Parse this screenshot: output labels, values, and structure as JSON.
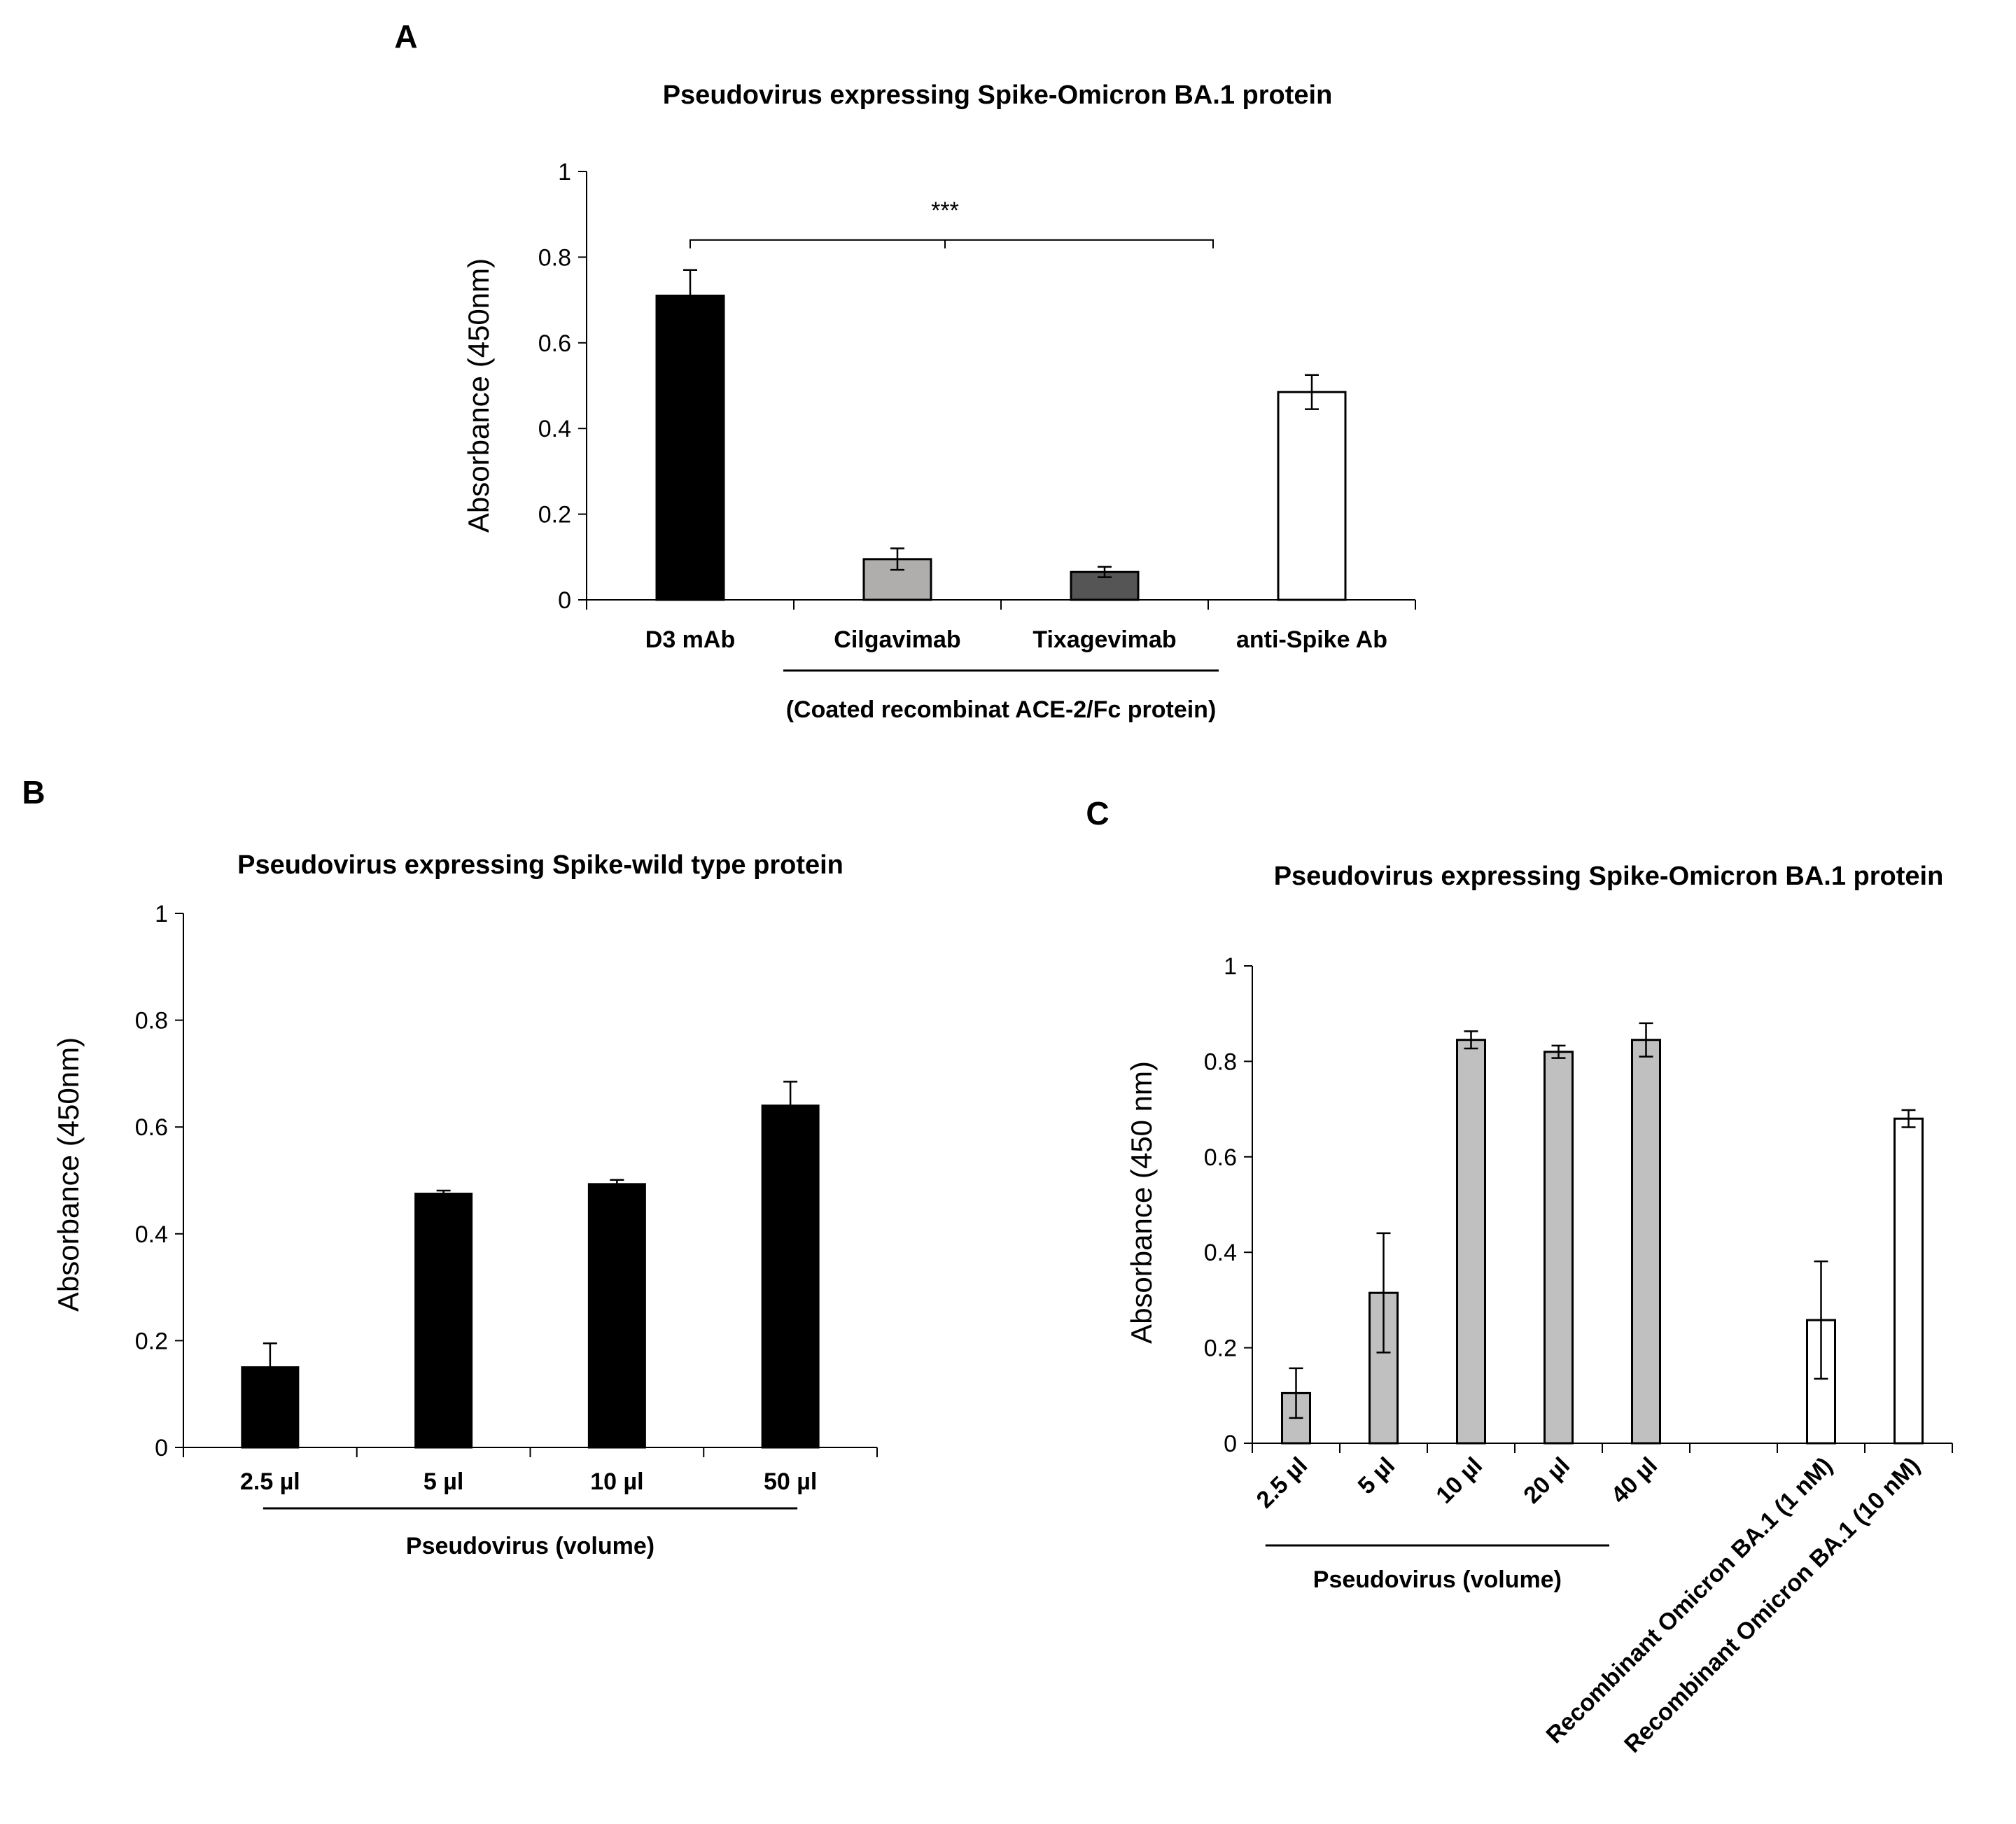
{
  "chart_data": [
    {
      "panel": "A",
      "type": "bar",
      "title": "Pseudovirus expressing Spike-Omicron BA.1 protein",
      "xlabel": "",
      "ylabel": "Absorbance (450nm)",
      "ylim": [
        0,
        1
      ],
      "yticks": [
        "0",
        "0.2",
        "0.4",
        "0.6",
        "0.8",
        "1"
      ],
      "categories": [
        "D3 mAb",
        "Cilgavimab",
        "Tixagevimab",
        "anti-Spike Ab"
      ],
      "values": [
        0.71,
        0.095,
        0.065,
        0.485
      ],
      "errors": [
        0.06,
        0.025,
        0.012,
        0.04
      ],
      "colors": [
        "#000000",
        "#b0adad",
        "#555555",
        "#ffffff"
      ],
      "group_label": "(Coated recombinat ACE-2/Fc protein)",
      "group_span": [
        1,
        2
      ],
      "significance": {
        "label": "***",
        "from": 0,
        "to": 2,
        "y": 0.84
      }
    },
    {
      "panel": "B",
      "type": "bar",
      "title": "Pseudovirus expressing Spike-wild type protein",
      "xlabel": "",
      "ylabel": "Absorbance (450nm)",
      "ylim": [
        0,
        1
      ],
      "yticks": [
        "0",
        "0.2",
        "0.4",
        "0.6",
        "0.8",
        "1"
      ],
      "categories": [
        "2.5 µl",
        "5 µl",
        "10 µl",
        "50 µl"
      ],
      "values": [
        0.15,
        0.475,
        0.493,
        0.64
      ],
      "errors": [
        0.045,
        0.006,
        0.008,
        0.045
      ],
      "colors": [
        "#000000",
        "#000000",
        "#000000",
        "#000000"
      ],
      "group_label": "Pseudovirus (volume)",
      "group_span": [
        0,
        3
      ]
    },
    {
      "panel": "C",
      "type": "bar",
      "title": "Pseudovirus expressing Spike-Omicron BA.1 protein",
      "xlabel": "",
      "ylabel": "Absorbance (450 nm)",
      "ylim": [
        0,
        1
      ],
      "yticks": [
        "0",
        "0.2",
        "0.4",
        "0.6",
        "0.8",
        "1"
      ],
      "categories": [
        "2.5 µl",
        "5 µl",
        "10 µl",
        "20 µl",
        "40 µl",
        "",
        "Recombinant Omicron BA.1 (1 nM)",
        "Recombinant Omicron BA.1 (10 nM)"
      ],
      "values": [
        0.105,
        0.315,
        0.845,
        0.82,
        0.845,
        null,
        0.258,
        0.68
      ],
      "errors": [
        0.052,
        0.125,
        0.018,
        0.013,
        0.035,
        null,
        0.123,
        0.018
      ],
      "colors": [
        "#c0c0c0",
        "#c0c0c0",
        "#c0c0c0",
        "#c0c0c0",
        "#c0c0c0",
        "#ffffff",
        "#ffffff",
        "#ffffff"
      ],
      "group_label": "Pseudovirus (volume)",
      "group_span": [
        0,
        3
      ]
    }
  ]
}
